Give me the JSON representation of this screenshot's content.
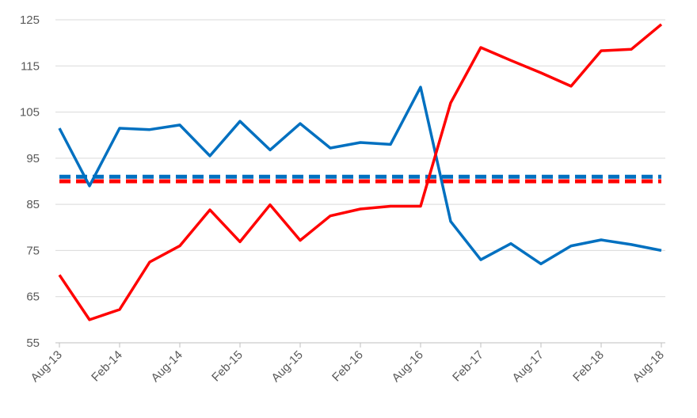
{
  "chart_data": {
    "type": "line",
    "title": "",
    "xlabel": "",
    "ylabel": "",
    "ylim": [
      55,
      125
    ],
    "yticks": [
      55,
      65,
      75,
      85,
      95,
      105,
      115,
      125
    ],
    "grid": true,
    "legend": "none",
    "x": [
      "Aug-13",
      "Nov-13",
      "Feb-14",
      "May-14",
      "Aug-14",
      "Nov-14",
      "Feb-15",
      "May-15",
      "Aug-15",
      "Nov-15",
      "Feb-16",
      "May-16",
      "Aug-16",
      "Nov-16",
      "Feb-17",
      "May-17",
      "Aug-17",
      "Nov-17",
      "Feb-18",
      "May-18",
      "Aug-18"
    ],
    "xticks": [
      "Aug-13",
      "Feb-14",
      "Aug-14",
      "Feb-15",
      "Aug-15",
      "Feb-16",
      "Aug-16",
      "Feb-17",
      "Aug-17",
      "Feb-18",
      "Aug-18"
    ],
    "series": [
      {
        "color": "#0070c0",
        "style": "solid",
        "values": [
          101.5,
          89,
          101.5,
          101.2,
          102.2,
          95.5,
          103,
          96.8,
          102.5,
          97.2,
          98.4,
          98,
          110.4,
          81.3,
          73,
          76.5,
          72.1,
          76,
          77.3,
          76.3,
          75
        ]
      },
      {
        "color": "#ff0000",
        "style": "solid",
        "values": [
          69.7,
          60,
          62.2,
          72.5,
          76,
          83.8,
          76.9,
          84.9,
          77.2,
          82.5,
          84,
          84.6,
          84.6,
          107,
          119,
          116.2,
          113.5,
          110.6,
          118.3,
          118.6,
          124
        ]
      },
      {
        "color": "#0070c0",
        "style": "dashed",
        "values": [
          91,
          91,
          91,
          91,
          91,
          91,
          91,
          91,
          91,
          91,
          91,
          91,
          91,
          91,
          91,
          91,
          91,
          91,
          91,
          91,
          91
        ]
      },
      {
        "color": "#ff0000",
        "style": "dashed",
        "values": [
          90,
          90,
          90,
          90,
          90,
          90,
          90,
          90,
          90,
          90,
          90,
          90,
          90,
          90,
          90,
          90,
          90,
          90,
          90,
          90,
          90
        ]
      }
    ]
  }
}
